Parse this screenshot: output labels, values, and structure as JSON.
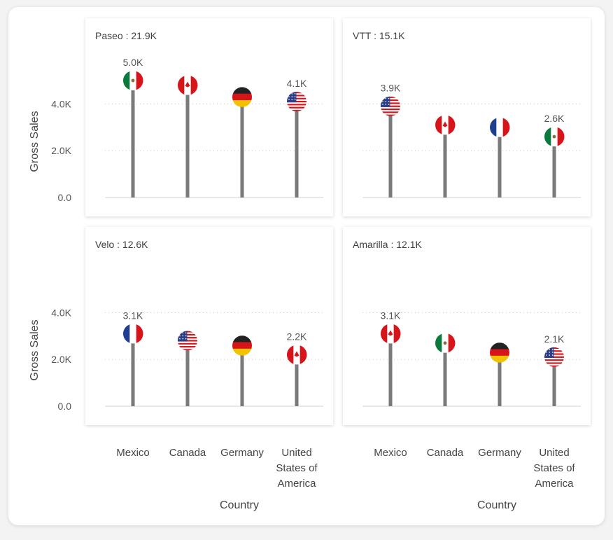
{
  "chart_data": {
    "type": "lollipop",
    "x_axis_title": "Country",
    "y_axis_title": "Gross Sales",
    "y_ticks": [
      "0.0",
      "2.0K",
      "4.0K"
    ],
    "y_tick_values": [
      0,
      2000,
      4000
    ],
    "ylim": [
      0,
      5600
    ],
    "grid": "dotted horizontal at 2.0K and 4.0K",
    "categories": [
      "Mexico",
      "Canada",
      "Germany",
      "United States of America"
    ],
    "category_label_lines": [
      [
        "Mexico"
      ],
      [
        "Canada"
      ],
      [
        "Germany"
      ],
      [
        "United",
        "States of",
        "America"
      ]
    ],
    "panels": [
      {
        "title": "Paseo : 21.9K",
        "points": [
          {
            "country": "Mexico",
            "flag": "mexico",
            "value": 5000,
            "label": "5.0K"
          },
          {
            "country": "Canada",
            "flag": "canada",
            "value": 4800,
            "label": ""
          },
          {
            "country": "Germany",
            "flag": "germany",
            "value": 4300,
            "label": ""
          },
          {
            "country": "United States of America",
            "flag": "usa",
            "value": 4100,
            "label": "4.1K"
          }
        ]
      },
      {
        "title": "VTT : 15.1K",
        "points": [
          {
            "country": "Mexico",
            "flag": "usa",
            "value": 3900,
            "label": "3.9K"
          },
          {
            "country": "Canada",
            "flag": "canada",
            "value": 3100,
            "label": ""
          },
          {
            "country": "Germany",
            "flag": "france",
            "value": 3000,
            "label": ""
          },
          {
            "country": "United States of America",
            "flag": "mexico",
            "value": 2600,
            "label": "2.6K"
          }
        ]
      },
      {
        "title": "Velo : 12.6K",
        "points": [
          {
            "country": "Mexico",
            "flag": "france",
            "value": 3100,
            "label": "3.1K"
          },
          {
            "country": "Canada",
            "flag": "usa",
            "value": 2800,
            "label": ""
          },
          {
            "country": "Germany",
            "flag": "germany",
            "value": 2600,
            "label": ""
          },
          {
            "country": "United States of America",
            "flag": "canada",
            "value": 2200,
            "label": "2.2K"
          }
        ]
      },
      {
        "title": "Amarilla : 12.1K",
        "points": [
          {
            "country": "Mexico",
            "flag": "canada",
            "value": 3100,
            "label": "3.1K"
          },
          {
            "country": "Canada",
            "flag": "mexico",
            "value": 2700,
            "label": ""
          },
          {
            "country": "Germany",
            "flag": "germany",
            "value": 2300,
            "label": ""
          },
          {
            "country": "United States of America",
            "flag": "usa",
            "value": 2100,
            "label": "2.1K"
          }
        ]
      }
    ]
  },
  "colors": {
    "stem": "#7a7a7a",
    "grid": "#c8c8c8",
    "mexico_green": "#0a7a3c",
    "red": "#d7141a",
    "germany_gold": "#f2c200",
    "france_blue": "#1f3e8f",
    "usa_blue": "#2c3e87"
  }
}
